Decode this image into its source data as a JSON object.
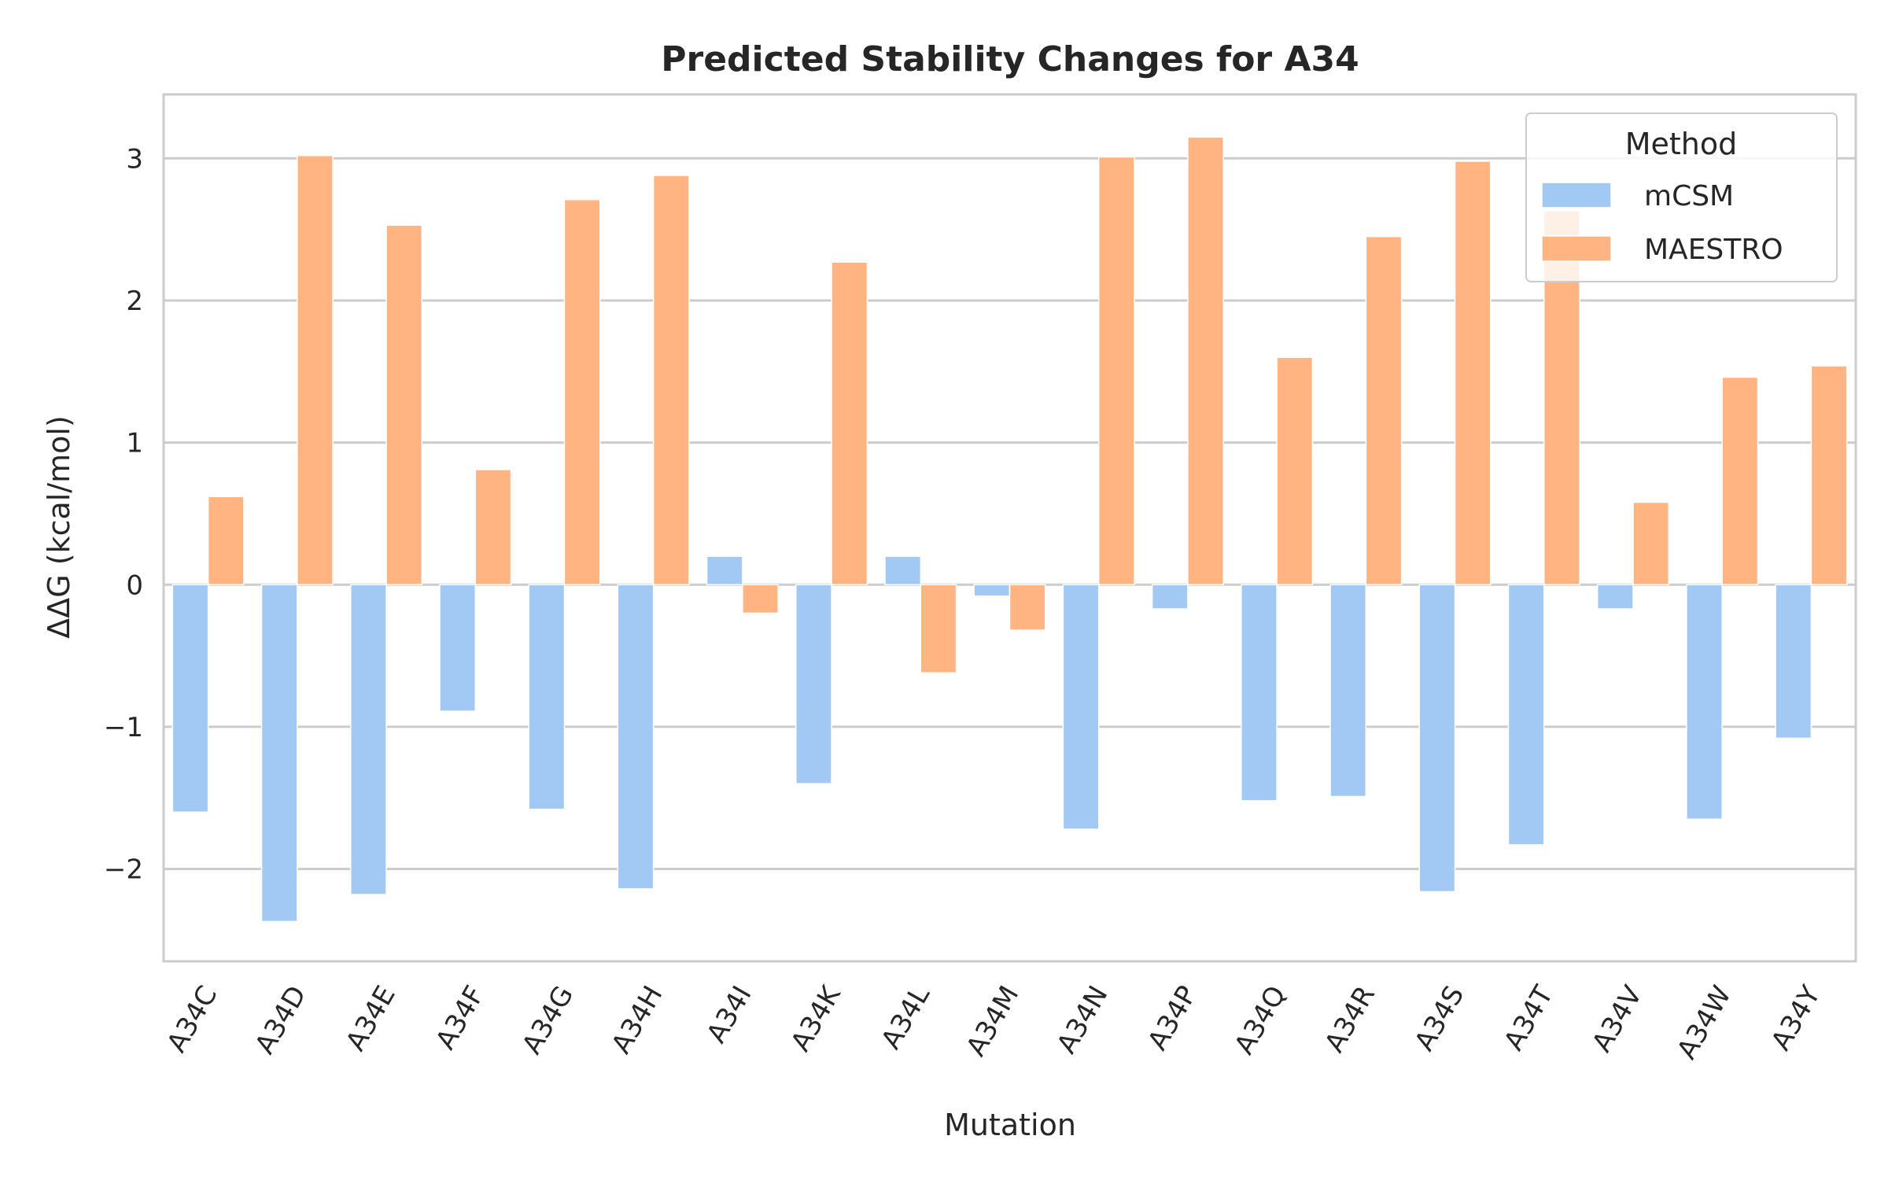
{
  "chart_data": {
    "type": "bar",
    "title": "Predicted Stability Changes for A34",
    "xlabel": "Mutation",
    "ylabel": "ΔΔG (kcal/mol)",
    "categories": [
      "A34C",
      "A34D",
      "A34E",
      "A34F",
      "A34G",
      "A34H",
      "A34I",
      "A34K",
      "A34L",
      "A34M",
      "A34N",
      "A34P",
      "A34Q",
      "A34R",
      "A34S",
      "A34T",
      "A34V",
      "A34W",
      "A34Y"
    ],
    "series": [
      {
        "name": "mCSM",
        "color": "#a1c9f4",
        "values": [
          -1.6,
          -2.37,
          -2.18,
          -0.89,
          -1.58,
          -2.14,
          0.2,
          -1.4,
          0.2,
          -0.08,
          -1.72,
          -0.17,
          -1.52,
          -1.49,
          -2.16,
          -1.83,
          -0.17,
          -1.65,
          -1.08
        ]
      },
      {
        "name": "MAESTRO",
        "color": "#ffb482",
        "values": [
          0.62,
          3.02,
          2.53,
          0.81,
          2.71,
          2.88,
          -0.2,
          2.27,
          -0.62,
          -0.32,
          3.01,
          3.15,
          1.6,
          2.45,
          2.98,
          2.63,
          0.58,
          1.46,
          1.54
        ]
      }
    ],
    "yticks": [
      -2,
      -1,
      0,
      1,
      2,
      3
    ],
    "ytick_labels": [
      "−2",
      "−1",
      "0",
      "1",
      "2",
      "3"
    ],
    "ylim": [
      -2.65,
      3.45
    ],
    "grid": true,
    "legend": {
      "title": "Method",
      "placement": "top-right"
    }
  }
}
